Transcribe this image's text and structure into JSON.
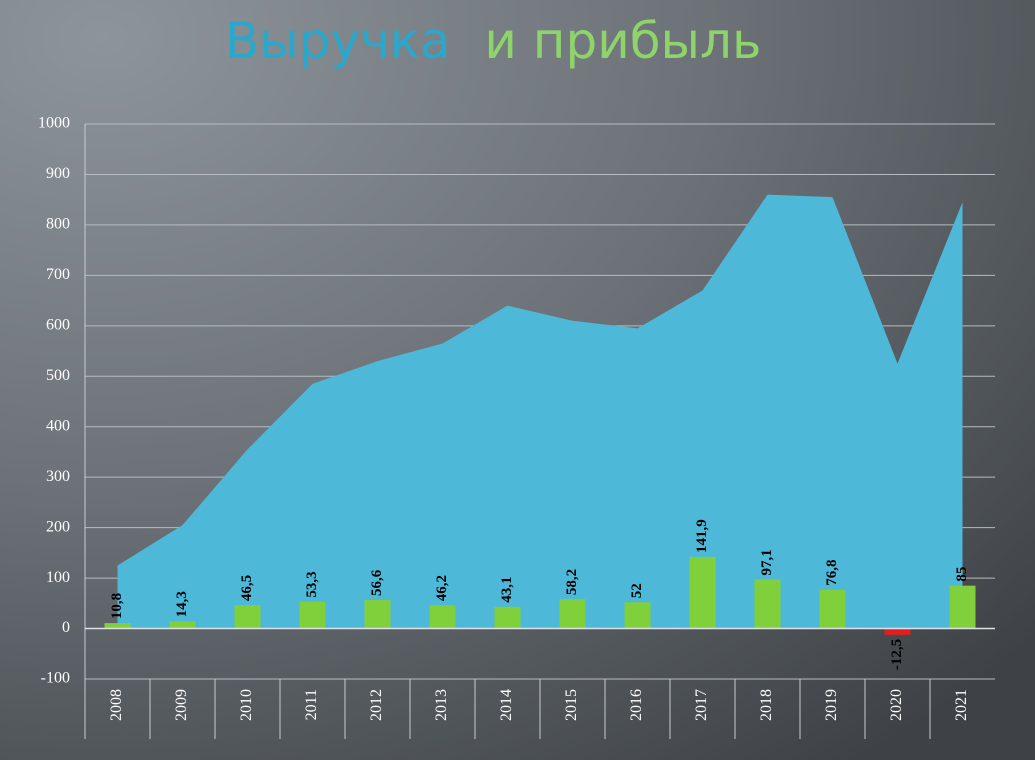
{
  "chart_data": {
    "type": "combo",
    "title": [
      "Выручка",
      "и прибыль"
    ],
    "title_colors": [
      "#2aa8cc",
      "#8ed46a"
    ],
    "categories": [
      "2008",
      "2009",
      "2010",
      "2011",
      "2012",
      "2013",
      "2014",
      "2015",
      "2016",
      "2017",
      "2018",
      "2019",
      "2020",
      "2021"
    ],
    "series": [
      {
        "type": "area",
        "color": "#4db8d8",
        "values": [
          125,
          205,
          355,
          485,
          530,
          565,
          640,
          610,
          595,
          670,
          860,
          855,
          525,
          845
        ]
      },
      {
        "type": "bar",
        "colors": [
          "#7fd03a",
          "#7fd03a",
          "#7fd03a",
          "#7fd03a",
          "#7fd03a",
          "#7fd03a",
          "#7fd03a",
          "#7fd03a",
          "#7fd03a",
          "#7fd03a",
          "#7fd03a",
          "#7fd03a",
          "#e02020",
          "#7fd03a"
        ],
        "values": [
          10.8,
          14.3,
          46.5,
          53.3,
          56.6,
          46.2,
          43.1,
          58.2,
          52,
          141.9,
          97.1,
          76.8,
          -12.5,
          85
        ],
        "value_labels": [
          "10,8",
          "14,3",
          "46,5",
          "53,3",
          "56,6",
          "46,2",
          "43,1",
          "58,2",
          "52",
          "141,9",
          "97,1",
          "76,8",
          "-12,5",
          "85"
        ]
      }
    ],
    "ylim": [
      -100,
      1000
    ],
    "yticks": [
      -100,
      0,
      100,
      200,
      300,
      400,
      500,
      600,
      700,
      800,
      900,
      1000
    ],
    "grid": true
  }
}
